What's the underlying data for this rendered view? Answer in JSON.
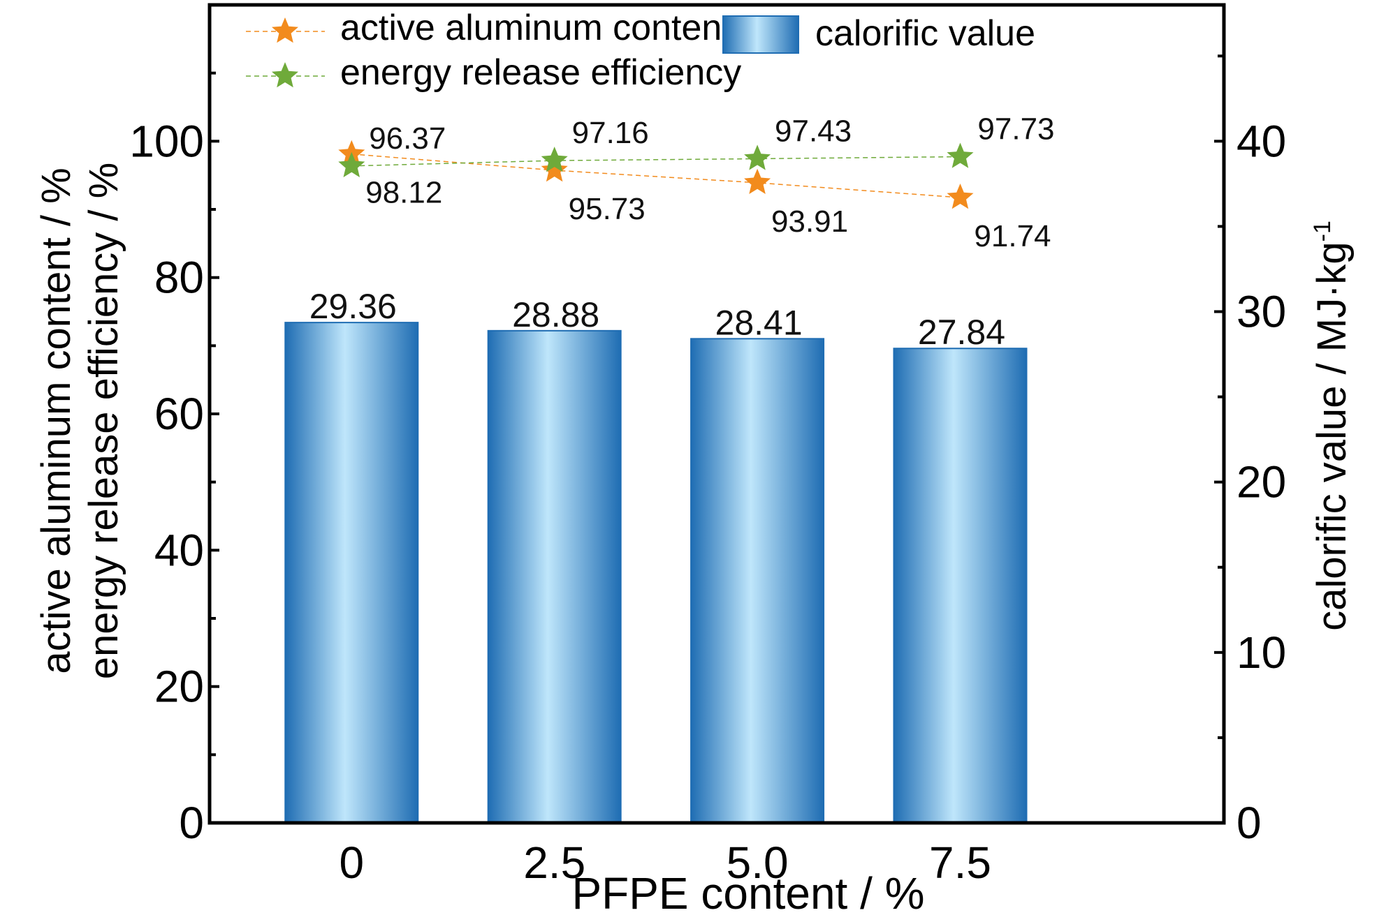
{
  "chart_data": {
    "type": "bar",
    "x": {
      "title": "PFPE content / %",
      "categories": [
        "0",
        "2.5",
        "5.0",
        "7.5"
      ]
    },
    "y_left": {
      "title_lines": [
        "active aluminum content / %",
        "energy release efficiency / %"
      ],
      "lim": [
        0,
        120
      ],
      "ticks": [
        0,
        20,
        40,
        60,
        80,
        100
      ]
    },
    "y_right": {
      "title": "calorific value / MJ·kg",
      "title_superscript": "-1",
      "lim": [
        0,
        48
      ],
      "ticks": [
        0,
        10,
        20,
        30,
        40
      ]
    },
    "bar_series": {
      "name": "calorific value",
      "axis": "right",
      "values": [
        29.36,
        28.88,
        28.41,
        27.84
      ],
      "labels": [
        "29.36",
        "28.88",
        "28.41",
        "27.84"
      ],
      "color_dark": "#1f6db3",
      "color_light": "#bfe6fb"
    },
    "line_series": [
      {
        "name": "active aluminum content",
        "axis": "left",
        "values": [
          98.12,
          95.73,
          93.91,
          91.74
        ],
        "labels": [
          "98.12",
          "95.73",
          "93.91",
          "91.74"
        ],
        "color": "#f28b1d",
        "marker": "star",
        "line_style": "dashed"
      },
      {
        "name": "energy release efficiency",
        "axis": "left",
        "values": [
          96.37,
          97.16,
          97.43,
          97.73
        ],
        "labels": [
          "96.37",
          "97.16",
          "97.43",
          "97.73"
        ],
        "color": "#6faa3a",
        "marker": "star",
        "line_style": "dashed"
      }
    ],
    "legend": {
      "placement": "top-left",
      "entries": [
        "active aluminum content",
        "energy release efficiency",
        "calorific value"
      ]
    },
    "grid": false
  }
}
